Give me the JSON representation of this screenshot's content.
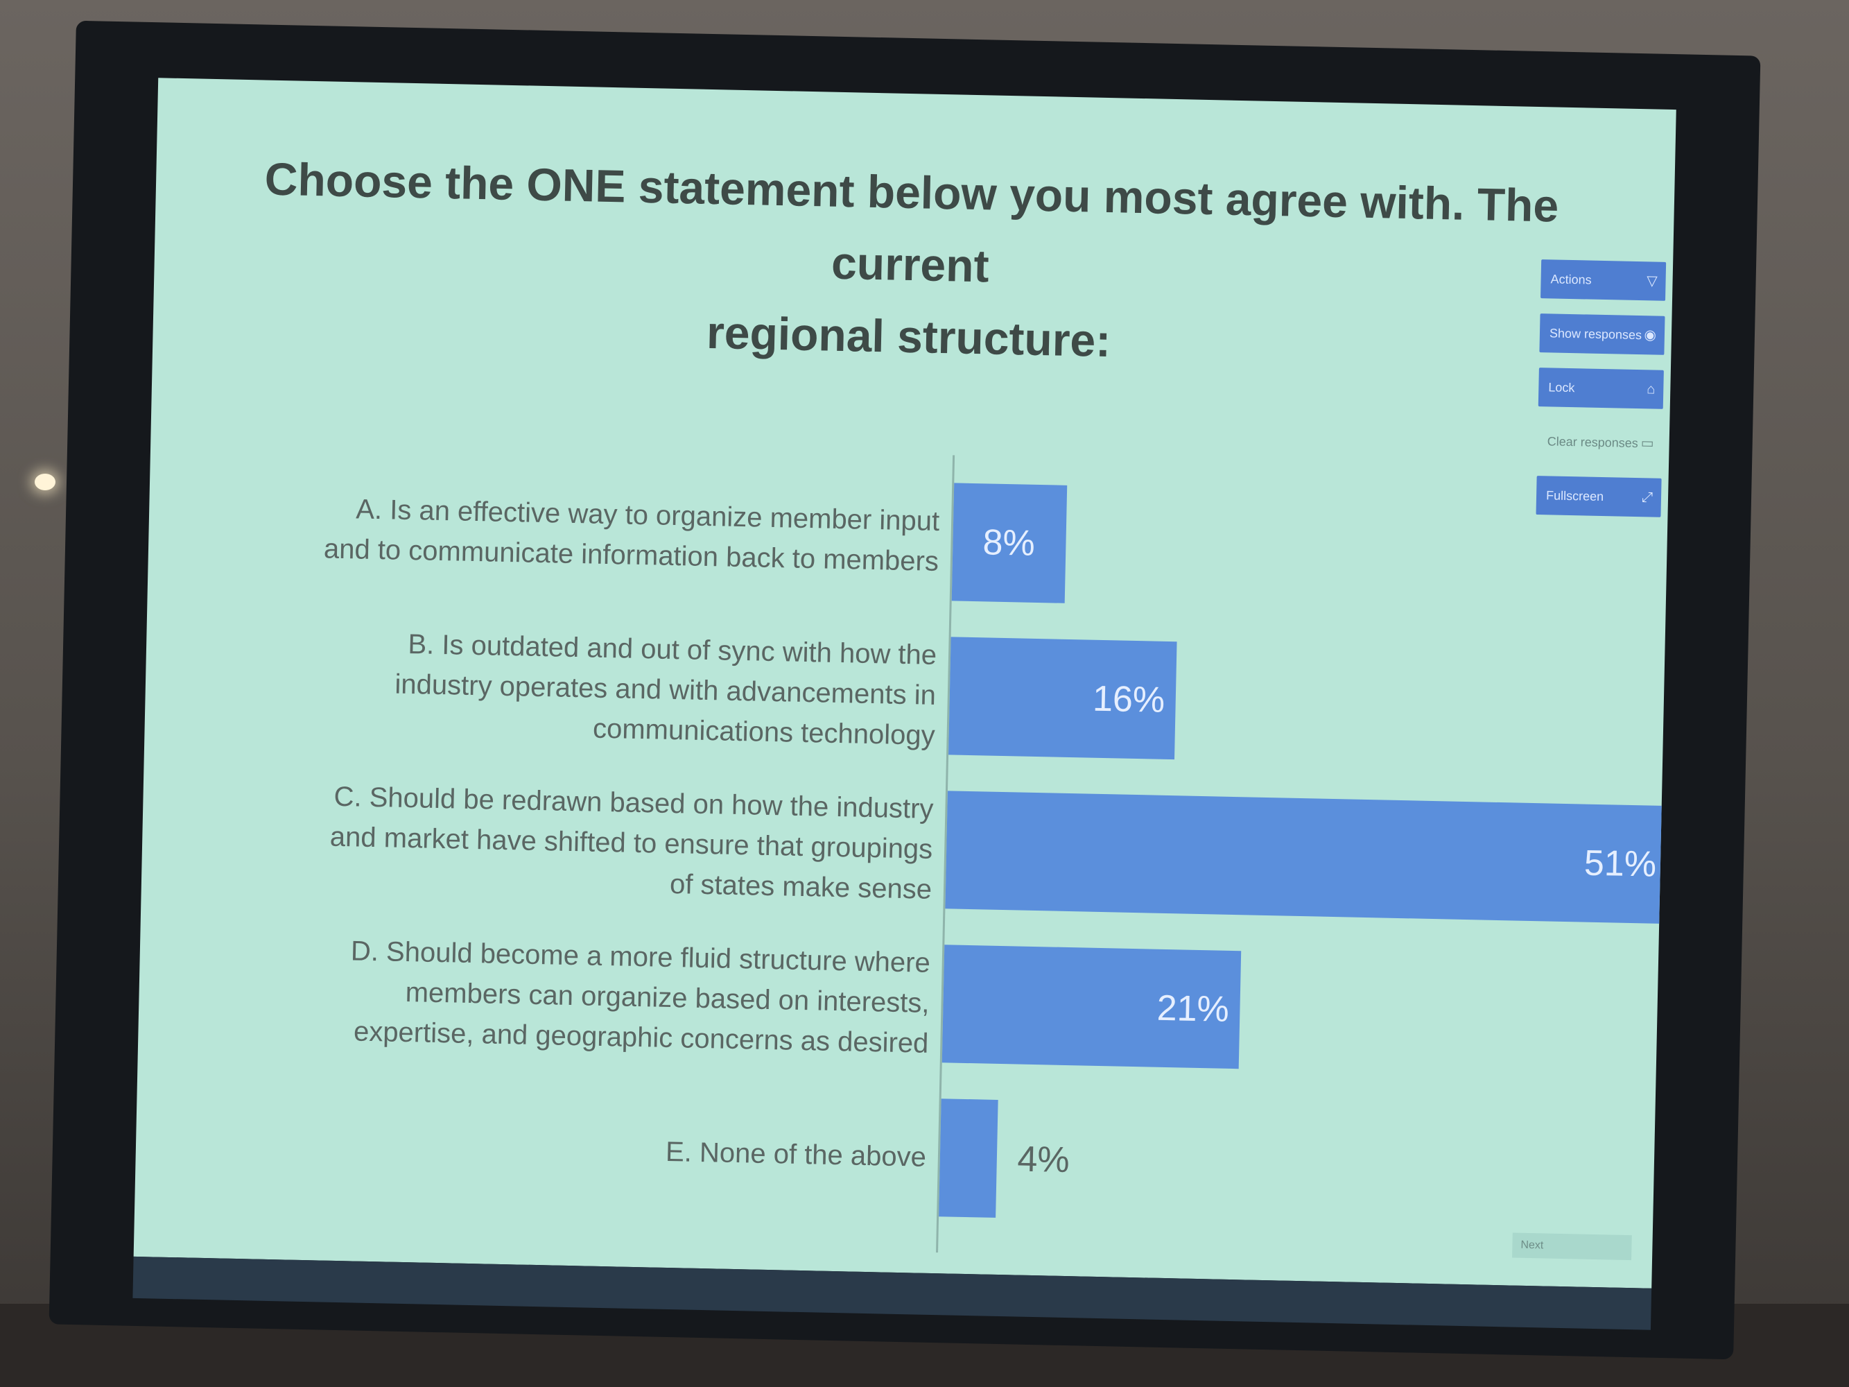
{
  "title_line1": "Choose the ONE statement below you most agree with. The current",
  "title_line2": "regional structure:",
  "controls": {
    "items": [
      {
        "label": "Actions",
        "icon": "funnel-icon"
      },
      {
        "label": "Show responses",
        "icon": "eye-icon"
      },
      {
        "label": "Lock",
        "icon": "lock-icon"
      },
      {
        "label": "Clear responses",
        "icon": "trash-icon"
      },
      {
        "label": "Fullscreen",
        "icon": "expand-icon"
      }
    ],
    "footer_label": "Next"
  },
  "chart_data": {
    "type": "bar",
    "orientation": "horizontal",
    "title": "Choose the ONE statement below you most agree with. The current regional structure:",
    "categories": [
      "A. Is an effective way to organize member input\nand to communicate information back to members",
      "B. Is outdated and out of sync with how the\nindustry operates and with advancements in\ncommunications technology",
      "C. Should be redrawn based on how the industry\nand market have shifted to ensure that groupings\nof states make sense",
      "D. Should become a more fluid structure where\nmembers can organize based on interests,\nexpertise, and geographic concerns as desired",
      "E. None of the above"
    ],
    "values": [
      8,
      16,
      51,
      21,
      4
    ],
    "value_labels": [
      "8%",
      "16%",
      "51%",
      "21%",
      "4%"
    ],
    "xlim": [
      0,
      51
    ],
    "unit": "%",
    "bar_color": "#5b8fdc",
    "grid": false
  }
}
